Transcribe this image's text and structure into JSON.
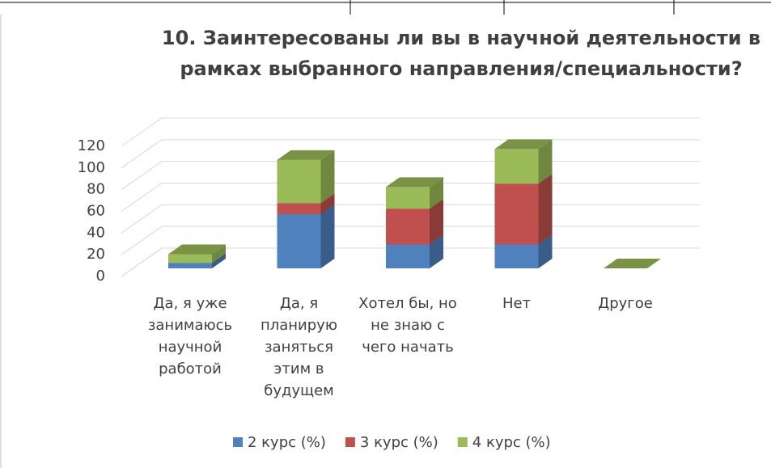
{
  "chart_data": {
    "type": "bar3d_stacked",
    "title": "10. Заинтересованы ли вы в научной деятельности в рамках выбранного направления/специальности?",
    "categories": [
      "Да, я уже занимаюсь научной работой",
      "Да, я планирую заняться этим в будущем",
      "Хотел бы, но не знаю с чего начать",
      "Нет",
      "Другое"
    ],
    "series": [
      {
        "name": "2 курс (%)",
        "color": "#4f81bd",
        "values": [
          5,
          50,
          22,
          22,
          0
        ]
      },
      {
        "name": "3 курс (%)",
        "color": "#c0504d",
        "values": [
          0,
          10,
          33,
          56,
          0
        ]
      },
      {
        "name": "4 курс (%)",
        "color": "#9bbb59",
        "values": [
          8,
          40,
          20,
          32,
          0
        ]
      }
    ],
    "ylim": [
      0,
      120
    ],
    "yticks": [
      0,
      20,
      40,
      60,
      80,
      100,
      120
    ],
    "grid": true,
    "legend": "bottom"
  }
}
